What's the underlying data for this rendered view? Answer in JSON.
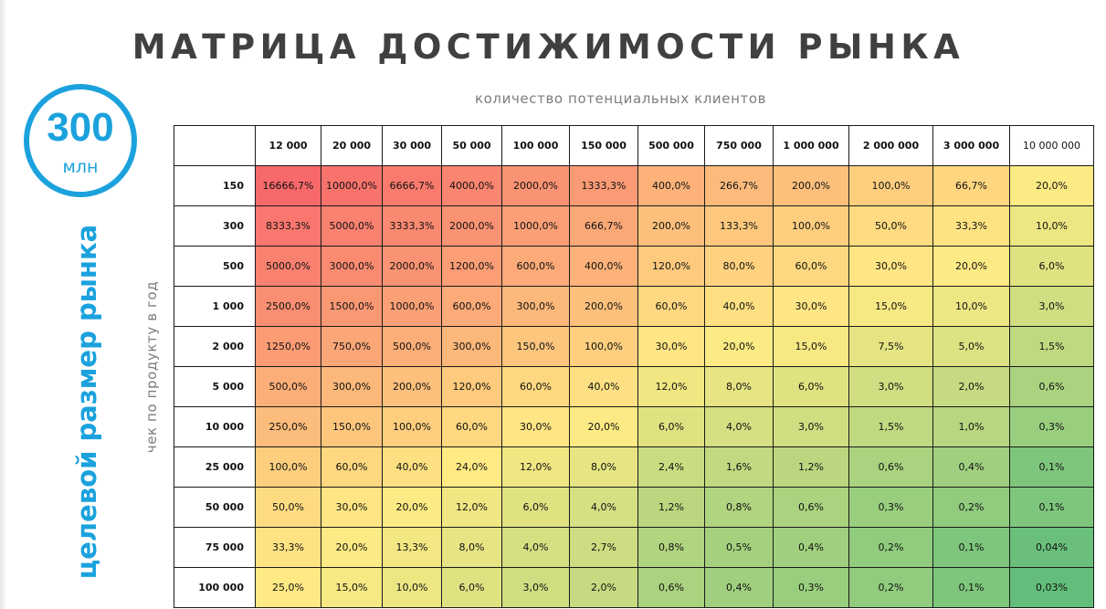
{
  "title": "МАТРИЦА ДОСТИЖИМОСТИ РЫНКА",
  "subtitle": "количество потенциальных клиентов",
  "market": {
    "value": "300",
    "unit": "млн",
    "label": "целевой размер рынка"
  },
  "row_axis_label": "чек по продукту в год",
  "chart_data": {
    "type": "table",
    "title": "МАТРИЦА ДОСТИЖИМОСТИ РЫНКА",
    "xlabel": "количество потенциальных клиентов",
    "ylabel": "чек по продукту в год",
    "columns": [
      "12 000",
      "20 000",
      "30 000",
      "50 000",
      "100 000",
      "150 000",
      "500 000",
      "750 000",
      "1 000 000",
      "2 000 000",
      "3 000 000",
      "10 000 000"
    ],
    "rows": [
      "150",
      "300",
      "500",
      "1 000",
      "2 000",
      "5 000",
      "10 000",
      "25 000",
      "50 000",
      "75 000",
      "100 000"
    ],
    "cells": [
      [
        "16666,7%",
        "10000,0%",
        "6666,7%",
        "4000,0%",
        "2000,0%",
        "1333,3%",
        "400,0%",
        "266,7%",
        "200,0%",
        "100,0%",
        "66,7%",
        "20,0%"
      ],
      [
        "8333,3%",
        "5000,0%",
        "3333,3%",
        "2000,0%",
        "1000,0%",
        "666,7%",
        "200,0%",
        "133,3%",
        "100,0%",
        "50,0%",
        "33,3%",
        "10,0%"
      ],
      [
        "5000,0%",
        "3000,0%",
        "2000,0%",
        "1200,0%",
        "600,0%",
        "400,0%",
        "120,0%",
        "80,0%",
        "60,0%",
        "30,0%",
        "20,0%",
        "6,0%"
      ],
      [
        "2500,0%",
        "1500,0%",
        "1000,0%",
        "600,0%",
        "300,0%",
        "200,0%",
        "60,0%",
        "40,0%",
        "30,0%",
        "15,0%",
        "10,0%",
        "3,0%"
      ],
      [
        "1250,0%",
        "750,0%",
        "500,0%",
        "300,0%",
        "150,0%",
        "100,0%",
        "30,0%",
        "20,0%",
        "15,0%",
        "7,5%",
        "5,0%",
        "1,5%"
      ],
      [
        "500,0%",
        "300,0%",
        "200,0%",
        "120,0%",
        "60,0%",
        "40,0%",
        "12,0%",
        "8,0%",
        "6,0%",
        "3,0%",
        "2,0%",
        "0,6%"
      ],
      [
        "250,0%",
        "150,0%",
        "100,0%",
        "60,0%",
        "30,0%",
        "20,0%",
        "6,0%",
        "4,0%",
        "3,0%",
        "1,5%",
        "1,0%",
        "0,3%"
      ],
      [
        "100,0%",
        "60,0%",
        "40,0%",
        "24,0%",
        "12,0%",
        "8,0%",
        "2,4%",
        "1,6%",
        "1,2%",
        "0,6%",
        "0,4%",
        "0,1%"
      ],
      [
        "50,0%",
        "30,0%",
        "20,0%",
        "12,0%",
        "6,0%",
        "4,0%",
        "1,2%",
        "0,8%",
        "0,6%",
        "0,3%",
        "0,2%",
        "0,1%"
      ],
      [
        "33,3%",
        "20,0%",
        "13,3%",
        "8,0%",
        "4,0%",
        "2,7%",
        "0,8%",
        "0,5%",
        "0,4%",
        "0,2%",
        "0,1%",
        "0,04%"
      ],
      [
        "25,0%",
        "15,0%",
        "10,0%",
        "6,0%",
        "3,0%",
        "2,0%",
        "0,6%",
        "0,4%",
        "0,3%",
        "0,2%",
        "0,1%",
        "0,03%"
      ]
    ],
    "color_scale": {
      "low": "#63be7b",
      "mid": "#ffeb84",
      "high": "#f8696b"
    }
  }
}
